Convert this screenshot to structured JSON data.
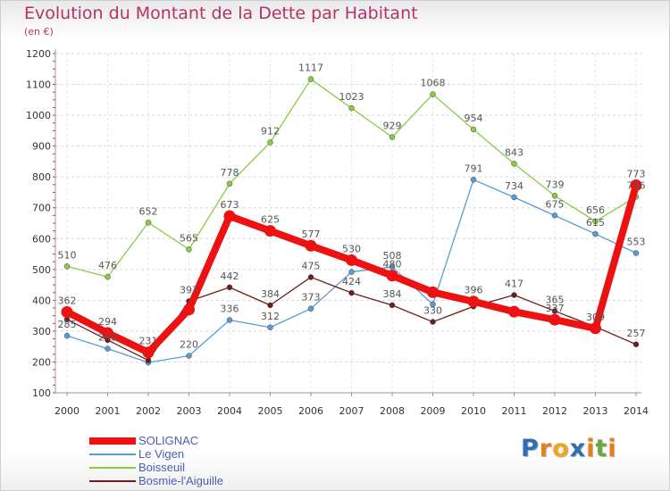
{
  "title": "Evolution du Montant de la Dette par Habitant",
  "subtitle": "(en €)",
  "logo": {
    "text": "Proxiti",
    "letter_colors": [
      "#2f6db6",
      "#e3811a",
      "#f0a51e",
      "#2f6db6",
      "#e3811a",
      "#6aa83a",
      "#e3811a"
    ]
  },
  "chart_data": {
    "type": "line",
    "title": "Evolution du Montant de la Dette par Habitant",
    "subtitle": "(en €)",
    "xlabel": "",
    "ylabel": "",
    "x": [
      "2000",
      "2001",
      "2002",
      "2003",
      "2004",
      "2005",
      "2006",
      "2007",
      "2008",
      "2009",
      "2010",
      "2011",
      "2012",
      "2013",
      "2014"
    ],
    "ylim": [
      100,
      1200
    ],
    "yticks": [
      "100",
      "200",
      "300",
      "400",
      "500",
      "600",
      "700",
      "800",
      "900",
      "1000",
      "1100",
      "1200"
    ],
    "grid": "horizontal dashed",
    "legend_position": "bottom-left",
    "series": [
      {
        "name": "SOLIGNAC",
        "color": "#ee1111",
        "values": [
          362,
          294,
          231,
          370,
          673,
          625,
          577,
          530,
          480,
          426,
          396,
          363,
          337,
          309,
          773
        ],
        "labels": [
          "362",
          "294",
          "231",
          "",
          "673",
          "625",
          "577",
          "530",
          "480",
          "",
          "396",
          "",
          "337",
          "309",
          "773"
        ]
      },
      {
        "name": "Le Vigen",
        "color": "#5b9bd5",
        "values": [
          285,
          243,
          198,
          220,
          336,
          312,
          373,
          492,
          508,
          387,
          791,
          734,
          675,
          615,
          553
        ],
        "labels": [
          "285",
          "243",
          "",
          "220",
          "336",
          "312",
          "373",
          "",
          "508",
          "",
          "791",
          "734",
          "675",
          "615",
          "553"
        ]
      },
      {
        "name": "Boisseuil",
        "color": "#88cc44",
        "values": [
          510,
          476,
          652,
          565,
          778,
          912,
          1117,
          1023,
          929,
          1068,
          954,
          843,
          739,
          656,
          736
        ],
        "labels": [
          "510",
          "476",
          "652",
          "565",
          "778",
          "912",
          "1117",
          "1023",
          "929",
          "1068",
          "954",
          "843",
          "739",
          "656",
          "736"
        ]
      },
      {
        "name": "Bosmie-l'Aiguille",
        "color": "#6b1e1e",
        "values": [
          338,
          271,
          205,
          397,
          442,
          384,
          475,
          424,
          384,
          330,
          380,
          417,
          365,
          314,
          257
        ],
        "labels": [
          "",
          "",
          "",
          "397",
          "442",
          "384",
          "475",
          "424",
          "384",
          "330",
          "",
          "417",
          "365",
          "",
          "257"
        ]
      }
    ]
  }
}
